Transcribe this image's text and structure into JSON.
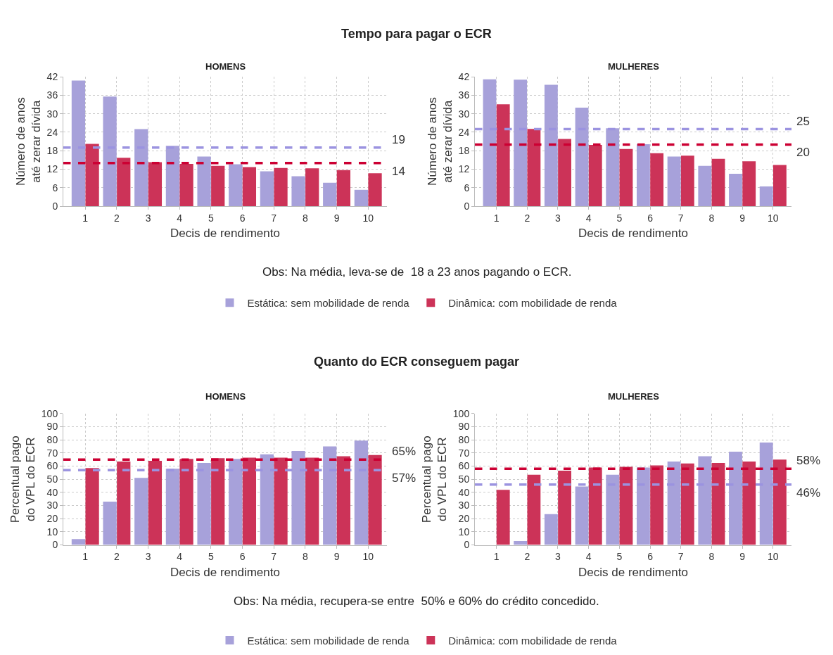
{
  "chart_data": [
    {
      "type": "bar",
      "title": "Tempo para pagar o ECR",
      "subtitle": "HOMENS",
      "xlabel": "Decis de rendimento",
      "ylabel": "Número de anos\naté zerar dívida",
      "categories": [
        "1",
        "2",
        "3",
        "4",
        "5",
        "6",
        "7",
        "8",
        "9",
        "10"
      ],
      "series": [
        {
          "name": "Estática: sem mobilidade de renda",
          "color": "#a7a1da",
          "values": [
            40.8,
            35.6,
            25,
            19.6,
            16.1,
            13.6,
            11.3,
            9.7,
            7.6,
            5.3
          ]
        },
        {
          "name": "Dinâmica: com mobilidade de renda",
          "color": "#cc3358",
          "values": [
            20.2,
            15.7,
            14.3,
            13.7,
            13.1,
            12.7,
            12.4,
            12.3,
            11.7,
            10.7
          ]
        }
      ],
      "ylim": [
        0,
        42
      ],
      "yticks": [
        0,
        6,
        12,
        18,
        24,
        30,
        36,
        42
      ],
      "grid": true,
      "legend": "bottom",
      "ref_lines": [
        {
          "axis": "y",
          "value": 19,
          "label": "19",
          "color": "#9b93e0",
          "line_style": "dashed"
        },
        {
          "axis": "y",
          "value": 14,
          "label": "14",
          "color": "#cc0033",
          "line_style": "dashed"
        }
      ],
      "annotations": [
        "Obs: Na média, leva-se de  18 a 23 anos pagando o ECR."
      ]
    },
    {
      "type": "bar",
      "subtitle": "MULHERES",
      "xlabel": "Decis de rendimento",
      "ylabel": "Número de anos\naté zerar dívida",
      "categories": [
        "1",
        "2",
        "3",
        "4",
        "5",
        "6",
        "7",
        "8",
        "9",
        "10"
      ],
      "series": [
        {
          "color": "#a7a1da",
          "values": [
            41.2,
            41.1,
            39.4,
            32,
            25.3,
            20.1,
            16.1,
            13.1,
            10.5,
            6.4
          ]
        },
        {
          "color": "#cc3358",
          "values": [
            33.1,
            25.1,
            21.8,
            19.9,
            18.6,
            17.2,
            16.4,
            15.4,
            14.6,
            13.4
          ]
        }
      ],
      "ylim": [
        0,
        42
      ],
      "yticks": [
        0,
        6,
        12,
        18,
        24,
        30,
        36,
        42
      ],
      "grid": true,
      "ref_lines": [
        {
          "axis": "y",
          "value": 25,
          "label": "25",
          "color": "#9b93e0",
          "line_style": "dashed"
        },
        {
          "axis": "y",
          "value": 20,
          "label": "20",
          "color": "#cc0033",
          "line_style": "dashed"
        }
      ]
    },
    {
      "type": "bar",
      "title": "Quanto do ECR conseguem pagar",
      "subtitle": "HOMENS",
      "xlabel": "Decis de rendimento",
      "ylabel": "Percentual pago\ndo VPL do ECR",
      "categories": [
        "1",
        "2",
        "3",
        "4",
        "5",
        "6",
        "7",
        "8",
        "9",
        "10"
      ],
      "series": [
        {
          "name": "Estática: sem mobilidade de renda",
          "color": "#a7a1da",
          "values": [
            4.5,
            33,
            51,
            58,
            62.5,
            65.5,
            69,
            71.5,
            75,
            79.5
          ]
        },
        {
          "name": "Dinâmica: com mobilidade de renda",
          "color": "#cc3358",
          "values": [
            58.5,
            63.5,
            64,
            65.5,
            66,
            66.5,
            66.5,
            66.5,
            67.5,
            68.5
          ]
        }
      ],
      "ylim": [
        0,
        100
      ],
      "yticks": [
        0,
        10,
        20,
        30,
        40,
        50,
        60,
        70,
        80,
        90,
        100
      ],
      "grid": true,
      "legend": "bottom",
      "ref_lines": [
        {
          "axis": "y",
          "value": 65,
          "label": "65%",
          "color": "#cc0033",
          "line_style": "dashed"
        },
        {
          "axis": "y",
          "value": 57,
          "label": "57%",
          "color": "#9b93e0",
          "line_style": "dashed"
        }
      ],
      "annotations": [
        "Obs: Na média, recupera-se entre  50% e 60% do crédito concedido."
      ]
    },
    {
      "type": "bar",
      "subtitle": "MULHERES",
      "xlabel": "Decis de rendimento",
      "ylabel": "Percentual pago\ndo VPL do ECR",
      "categories": [
        "1",
        "2",
        "3",
        "4",
        "5",
        "6",
        "7",
        "8",
        "9",
        "10"
      ],
      "series": [
        {
          "color": "#a7a1da",
          "values": [
            0,
            3,
            23.5,
            44.5,
            53.5,
            59,
            63.5,
            67.5,
            71,
            78
          ]
        },
        {
          "color": "#cc3358",
          "values": [
            42,
            53.5,
            56.5,
            59,
            59.5,
            60.5,
            62,
            62.5,
            63.5,
            65
          ]
        }
      ],
      "ylim": [
        0,
        100
      ],
      "yticks": [
        0,
        10,
        20,
        30,
        40,
        50,
        60,
        70,
        80,
        90,
        100
      ],
      "grid": true,
      "ref_lines": [
        {
          "axis": "y",
          "value": 58,
          "label": "58%",
          "color": "#cc0033",
          "line_style": "dashed"
        },
        {
          "axis": "y",
          "value": 46,
          "label": "46%",
          "color": "#9b93e0",
          "line_style": "dashed"
        }
      ]
    }
  ]
}
